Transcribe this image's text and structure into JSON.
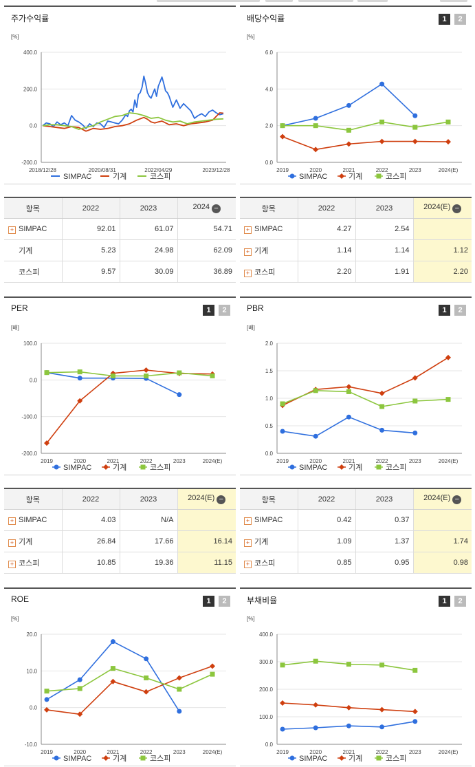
{
  "colors": {
    "simpac": "#2f6fde",
    "machinery": "#cf3f0f",
    "kospi": "#8cc63e"
  },
  "legend": {
    "simpac": "SIMPAC",
    "machinery": "기계",
    "kospi": "코스피"
  },
  "buttons": {
    "one": "1",
    "two": "2"
  },
  "panels": {
    "stock_return": {
      "title": "주가수익률",
      "unit": "[%]"
    },
    "dividend": {
      "title": "배당수익률",
      "unit": "[%]"
    },
    "per": {
      "title": "PER",
      "unit": "[배]"
    },
    "pbr": {
      "title": "PBR",
      "unit": "[배]"
    },
    "roe": {
      "title": "ROE",
      "unit": "[%]"
    },
    "debt": {
      "title": "부채비율",
      "unit": "[%]"
    }
  },
  "tables": {
    "stock_return": {
      "headers": [
        "항목",
        "2022",
        "2023",
        "2024"
      ],
      "rows": [
        {
          "name": "SIMPAC",
          "v": [
            "92.01",
            "61.07",
            "54.71"
          ]
        },
        {
          "name": "기계",
          "v": [
            "5.23",
            "24.98",
            "62.09"
          ]
        },
        {
          "name": "코스피",
          "v": [
            "9.57",
            "30.09",
            "36.89"
          ]
        }
      ]
    },
    "dividend": {
      "headers": [
        "항목",
        "2022",
        "2023",
        "2024(E)"
      ],
      "rows": [
        {
          "name": "SIMPAC",
          "v": [
            "4.27",
            "2.54",
            ""
          ]
        },
        {
          "name": "기계",
          "v": [
            "1.14",
            "1.14",
            "1.12"
          ]
        },
        {
          "name": "코스피",
          "v": [
            "2.20",
            "1.91",
            "2.20"
          ]
        }
      ]
    },
    "per": {
      "headers": [
        "항목",
        "2022",
        "2023",
        "2024(E)"
      ],
      "rows": [
        {
          "name": "SIMPAC",
          "v": [
            "4.03",
            "N/A",
            ""
          ]
        },
        {
          "name": "기계",
          "v": [
            "26.84",
            "17.66",
            "16.14"
          ]
        },
        {
          "name": "코스피",
          "v": [
            "10.85",
            "19.36",
            "11.15"
          ]
        }
      ]
    },
    "pbr": {
      "headers": [
        "항목",
        "2022",
        "2023",
        "2024(E)"
      ],
      "rows": [
        {
          "name": "SIMPAC",
          "v": [
            "0.42",
            "0.37",
            ""
          ]
        },
        {
          "name": "기계",
          "v": [
            "1.09",
            "1.37",
            "1.74"
          ]
        },
        {
          "name": "코스피",
          "v": [
            "0.85",
            "0.95",
            "0.98"
          ]
        }
      ]
    }
  },
  "chart_data": [
    {
      "id": "stock_return",
      "type": "line",
      "title": "주가수익률",
      "ylabel": "[%]",
      "ylim": [
        -200,
        400
      ],
      "yticks": [
        -200,
        0,
        200,
        400
      ],
      "ytick_labels": [
        "-200.0",
        "0.0",
        "200.0",
        "400.0"
      ],
      "xlim": [
        0,
        100
      ],
      "xticks": [
        {
          "x": 0,
          "label": "2018/12/28"
        },
        {
          "x": 33,
          "label": "2020/08/31"
        },
        {
          "x": 64,
          "label": "2022/04/29"
        },
        {
          "x": 96,
          "label": "2023/12/28"
        }
      ],
      "series": [
        {
          "key": "simpac",
          "name": "SIMPAC",
          "x": [
            0,
            2,
            4,
            6,
            8,
            10,
            12,
            14,
            16,
            18,
            20,
            22,
            24,
            26,
            28,
            30,
            32,
            34,
            36,
            38,
            40,
            42,
            44,
            46,
            47,
            48,
            49,
            50,
            51,
            52,
            53,
            54,
            55,
            56,
            57,
            58,
            59,
            60,
            61,
            62,
            63,
            64,
            65,
            66,
            67,
            68,
            69,
            70,
            72,
            74,
            76,
            78,
            80,
            82,
            84,
            86,
            88,
            90,
            92,
            94,
            96,
            98,
            100
          ],
          "y": [
            0,
            15,
            10,
            -5,
            20,
            5,
            15,
            0,
            55,
            30,
            20,
            5,
            -15,
            10,
            -5,
            15,
            10,
            -10,
            25,
            20,
            15,
            10,
            30,
            60,
            50,
            80,
            90,
            75,
            140,
            100,
            170,
            180,
            210,
            270,
            230,
            180,
            160,
            150,
            175,
            200,
            160,
            215,
            240,
            265,
            230,
            190,
            180,
            160,
            100,
            140,
            95,
            120,
            100,
            80,
            40,
            55,
            65,
            50,
            75,
            85,
            70,
            60,
            65
          ]
        },
        {
          "key": "machinery",
          "name": "기계",
          "x": [
            0,
            4,
            8,
            12,
            16,
            20,
            24,
            28,
            32,
            36,
            40,
            44,
            48,
            52,
            56,
            58,
            60,
            62,
            64,
            66,
            70,
            74,
            78,
            82,
            86,
            90,
            94,
            96,
            98,
            100
          ],
          "y": [
            0,
            -5,
            -10,
            -15,
            -5,
            -10,
            -30,
            -15,
            -20,
            -15,
            -5,
            0,
            10,
            30,
            45,
            35,
            20,
            15,
            20,
            25,
            5,
            10,
            0,
            10,
            15,
            20,
            30,
            50,
            70,
            68
          ]
        },
        {
          "key": "kospi",
          "name": "코스피",
          "x": [
            0,
            4,
            8,
            12,
            16,
            20,
            24,
            28,
            32,
            36,
            40,
            44,
            48,
            52,
            56,
            60,
            64,
            68,
            72,
            76,
            80,
            84,
            88,
            92,
            96,
            100
          ],
          "y": [
            0,
            5,
            5,
            0,
            -5,
            -20,
            -10,
            0,
            20,
            35,
            50,
            55,
            70,
            65,
            55,
            40,
            45,
            30,
            20,
            25,
            10,
            20,
            25,
            30,
            35,
            37
          ]
        }
      ]
    },
    {
      "id": "dividend",
      "type": "line",
      "title": "배당수익률",
      "ylabel": "[%]",
      "categories": [
        "2019",
        "2020",
        "2021",
        "2022",
        "2023",
        "2024(E)"
      ],
      "ylim": [
        0,
        6
      ],
      "yticks": [
        0,
        2,
        4,
        6
      ],
      "ytick_labels": [
        "0.0",
        "2.0",
        "4.0",
        "6.0"
      ],
      "series": [
        {
          "key": "simpac",
          "name": "SIMPAC",
          "values": [
            2.0,
            2.4,
            3.1,
            4.27,
            2.54,
            null
          ]
        },
        {
          "key": "machinery",
          "name": "기계",
          "values": [
            1.4,
            0.7,
            1.0,
            1.14,
            1.14,
            1.12
          ]
        },
        {
          "key": "kospi",
          "name": "코스피",
          "values": [
            2.0,
            2.0,
            1.75,
            2.2,
            1.91,
            2.2
          ]
        }
      ]
    },
    {
      "id": "per",
      "type": "line",
      "title": "PER",
      "ylabel": "[배]",
      "categories": [
        "2019",
        "2020",
        "2021",
        "2022",
        "2023",
        "2024(E)"
      ],
      "ylim": [
        -200,
        100
      ],
      "yticks": [
        -200,
        -100,
        0,
        100
      ],
      "ytick_labels": [
        "-200.0",
        "-100.0",
        "0.0",
        "100.0"
      ],
      "series": [
        {
          "key": "simpac",
          "name": "SIMPAC",
          "values": [
            20,
            5,
            5,
            4.03,
            -40,
            null
          ]
        },
        {
          "key": "machinery",
          "name": "기계",
          "values": [
            -172,
            -57,
            18,
            26.84,
            17.66,
            16.14
          ]
        },
        {
          "key": "kospi",
          "name": "코스피",
          "values": [
            20,
            22,
            11,
            10.85,
            19.36,
            11.15
          ]
        }
      ]
    },
    {
      "id": "pbr",
      "type": "line",
      "title": "PBR",
      "ylabel": "[배]",
      "categories": [
        "2019",
        "2020",
        "2021",
        "2022",
        "2023",
        "2024(E)"
      ],
      "ylim": [
        0,
        2
      ],
      "yticks": [
        0,
        0.5,
        1,
        1.5,
        2
      ],
      "ytick_labels": [
        "0.0",
        "0.5",
        "1.0",
        "1.5",
        "2.0"
      ],
      "series": [
        {
          "key": "simpac",
          "name": "SIMPAC",
          "values": [
            0.4,
            0.31,
            0.66,
            0.42,
            0.37,
            null
          ]
        },
        {
          "key": "machinery",
          "name": "기계",
          "values": [
            0.87,
            1.16,
            1.21,
            1.09,
            1.37,
            1.74
          ]
        },
        {
          "key": "kospi",
          "name": "코스피",
          "values": [
            0.9,
            1.14,
            1.12,
            0.85,
            0.95,
            0.98
          ]
        }
      ]
    },
    {
      "id": "roe",
      "type": "line",
      "title": "ROE",
      "ylabel": "[%]",
      "categories": [
        "2019",
        "2020",
        "2021",
        "2022",
        "2023",
        "2024(E)"
      ],
      "ylim": [
        -10,
        20
      ],
      "yticks": [
        -10,
        0,
        10,
        20
      ],
      "ytick_labels": [
        "-10.0",
        "0.0",
        "10.0",
        "20.0"
      ],
      "series": [
        {
          "key": "simpac",
          "name": "SIMPAC",
          "values": [
            2.2,
            7.6,
            18.0,
            13.3,
            -1.0,
            null
          ]
        },
        {
          "key": "machinery",
          "name": "기계",
          "values": [
            -0.6,
            -1.8,
            7.1,
            4.3,
            8.1,
            11.3
          ]
        },
        {
          "key": "kospi",
          "name": "코스피",
          "values": [
            4.5,
            5.2,
            10.7,
            8.1,
            5.0,
            9.1
          ]
        }
      ]
    },
    {
      "id": "debt",
      "type": "line",
      "title": "부채비율",
      "ylabel": "[%]",
      "categories": [
        "2019",
        "2020",
        "2021",
        "2022",
        "2023",
        "2024(E)"
      ],
      "ylim": [
        0,
        400
      ],
      "yticks": [
        0,
        100,
        200,
        300,
        400
      ],
      "ytick_labels": [
        "0.0",
        "100.0",
        "200.0",
        "300.0",
        "400.0"
      ],
      "series": [
        {
          "key": "simpac",
          "name": "SIMPAC",
          "values": [
            55,
            60,
            67,
            63,
            83,
            null
          ]
        },
        {
          "key": "machinery",
          "name": "기계",
          "values": [
            150,
            143,
            133,
            126,
            119,
            null
          ]
        },
        {
          "key": "kospi",
          "name": "코스피",
          "values": [
            288,
            302,
            291,
            288,
            269,
            null
          ]
        }
      ]
    }
  ]
}
